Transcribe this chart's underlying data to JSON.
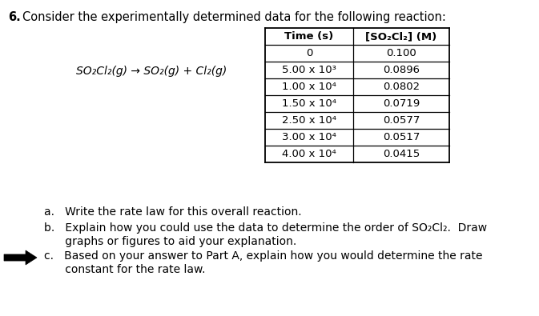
{
  "title_number": "6.",
  "title_text": "Consider the experimentally determined data for the following reaction:",
  "reaction": "SO₂Cl₂(g) → SO₂(g) + Cl₂(g)",
  "table_header_time": "Time (s)",
  "table_header_conc": "[SO₂Cl₂] (M)",
  "table_data": [
    [
      "0",
      "0.100"
    ],
    [
      "5.00 x 10³",
      "0.0896"
    ],
    [
      "1.00 x 10⁴",
      "0.0802"
    ],
    [
      "1.50 x 10⁴",
      "0.0719"
    ],
    [
      "2.50 x 10⁴",
      "0.0577"
    ],
    [
      "3.00 x 10⁴",
      "0.0517"
    ],
    [
      "4.00 x 10⁴",
      "0.0415"
    ]
  ],
  "question_a": "a.   Write the rate law for this overall reaction.",
  "question_b_line1": "b.   Explain how you could use the data to determine the order of SO₂Cl₂.  Draw",
  "question_b_line2": "      graphs or figures to aid your explanation.",
  "question_c_line1": "c.   Based on your answer to Part A, explain how you would determine the rate",
  "question_c_line2": "      constant for the rate law.",
  "bg_color": "#ffffff",
  "text_color": "#000000",
  "font_size_title": 10.5,
  "font_size_body": 10.0,
  "font_size_table": 9.5,
  "font_size_table_header": 9.5
}
